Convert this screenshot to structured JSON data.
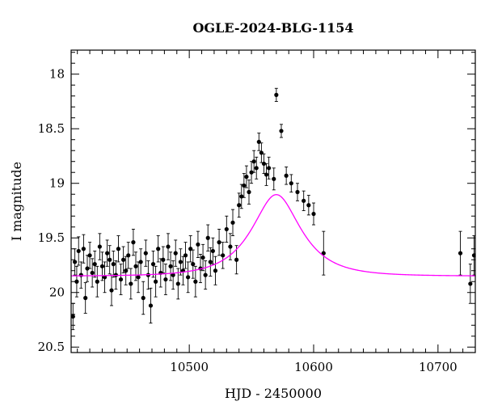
{
  "chart_data": {
    "type": "scatter",
    "title": "OGLE-2024-BLG-1154",
    "xlabel": "HJD - 2450000",
    "ylabel": "I magnitude",
    "xlim": [
      10405,
      10730
    ],
    "ylim": [
      20.55,
      17.78
    ],
    "y_inverted": true,
    "xticks": [
      10500,
      10600,
      10700
    ],
    "xtick_labels": [
      "10500",
      "10600",
      "10700"
    ],
    "yticks": [
      18,
      18.5,
      19,
      19.5,
      20,
      20.5
    ],
    "ytick_labels": [
      "18",
      "18.5",
      "19",
      "19.5",
      "20",
      "20.5"
    ],
    "grid": false,
    "legend": "none",
    "colors": {
      "points": "#000000",
      "model": "#ff00ff",
      "axes": "#000000"
    },
    "series": [
      {
        "kind": "photometry-with-errorbars",
        "points": [
          [
            10406.5,
            20.22,
            0.12
          ],
          [
            10408,
            19.72,
            0.12
          ],
          [
            10409.5,
            19.9,
            0.14
          ],
          [
            10411,
            19.62,
            0.13
          ],
          [
            10413,
            19.84,
            0.12
          ],
          [
            10415,
            19.6,
            0.13
          ],
          [
            10416.5,
            20.05,
            0.14
          ],
          [
            10418,
            19.78,
            0.12
          ],
          [
            10420,
            19.66,
            0.12
          ],
          [
            10422,
            19.82,
            0.13
          ],
          [
            10424,
            19.74,
            0.12
          ],
          [
            10426,
            19.9,
            0.14
          ],
          [
            10428,
            19.58,
            0.12
          ],
          [
            10430,
            19.76,
            0.13
          ],
          [
            10432,
            19.86,
            0.14
          ],
          [
            10434,
            19.64,
            0.12
          ],
          [
            10436,
            19.7,
            0.13
          ],
          [
            10437.5,
            19.98,
            0.14
          ],
          [
            10439,
            19.74,
            0.12
          ],
          [
            10441,
            19.84,
            0.13
          ],
          [
            10443,
            19.6,
            0.12
          ],
          [
            10445,
            19.88,
            0.14
          ],
          [
            10447,
            19.7,
            0.12
          ],
          [
            10449,
            19.8,
            0.13
          ],
          [
            10451,
            19.66,
            0.12
          ],
          [
            10453,
            19.92,
            0.14
          ],
          [
            10455,
            19.54,
            0.12
          ],
          [
            10457,
            19.76,
            0.13
          ],
          [
            10459,
            19.86,
            0.14
          ],
          [
            10461,
            19.72,
            0.12
          ],
          [
            10463,
            20.05,
            0.15
          ],
          [
            10465,
            19.64,
            0.12
          ],
          [
            10467,
            19.84,
            0.13
          ],
          [
            10469,
            20.12,
            0.16
          ],
          [
            10471,
            19.74,
            0.12
          ],
          [
            10473,
            19.9,
            0.14
          ],
          [
            10475,
            19.6,
            0.12
          ],
          [
            10477,
            19.82,
            0.13
          ],
          [
            10479,
            19.7,
            0.12
          ],
          [
            10481,
            19.88,
            0.14
          ],
          [
            10483,
            19.58,
            0.12
          ],
          [
            10485,
            19.76,
            0.13
          ],
          [
            10487,
            19.84,
            0.13
          ],
          [
            10489,
            19.64,
            0.12
          ],
          [
            10491,
            19.92,
            0.14
          ],
          [
            10493,
            19.72,
            0.12
          ],
          [
            10495,
            19.8,
            0.13
          ],
          [
            10497,
            19.66,
            0.12
          ],
          [
            10499,
            19.86,
            0.14
          ],
          [
            10501,
            19.6,
            0.12
          ],
          [
            10503,
            19.74,
            0.13
          ],
          [
            10505,
            19.9,
            0.14
          ],
          [
            10507,
            19.56,
            0.12
          ],
          [
            10509,
            19.78,
            0.13
          ],
          [
            10511,
            19.68,
            0.12
          ],
          [
            10513,
            19.84,
            0.13
          ],
          [
            10515,
            19.5,
            0.12
          ],
          [
            10517,
            19.72,
            0.13
          ],
          [
            10519,
            19.62,
            0.12
          ],
          [
            10521,
            19.8,
            0.13
          ],
          [
            10524,
            19.54,
            0.12
          ],
          [
            10527,
            19.66,
            0.12
          ],
          [
            10530,
            19.42,
            0.12
          ],
          [
            10533,
            19.58,
            0.12
          ],
          [
            10535,
            19.36,
            0.12
          ],
          [
            10538,
            19.7,
            0.13
          ],
          [
            10540,
            19.2,
            0.11
          ],
          [
            10542,
            19.12,
            0.11
          ],
          [
            10544,
            19.02,
            0.11
          ],
          [
            10546,
            18.94,
            0.1
          ],
          [
            10548,
            19.08,
            0.11
          ],
          [
            10550,
            18.9,
            0.1
          ],
          [
            10552,
            18.8,
            0.1
          ],
          [
            10554,
            18.86,
            0.1
          ],
          [
            10556,
            18.62,
            0.08
          ],
          [
            10558,
            18.72,
            0.09
          ],
          [
            10560,
            18.82,
            0.09
          ],
          [
            10562,
            18.92,
            0.1
          ],
          [
            10564,
            18.86,
            0.1
          ],
          [
            10570,
            18.19,
            0.06
          ],
          [
            10568,
            18.96,
            0.1
          ],
          [
            10574,
            18.52,
            0.06
          ],
          [
            10578,
            18.93,
            0.08
          ],
          [
            10582,
            19.0,
            0.08
          ],
          [
            10587,
            19.08,
            0.08
          ],
          [
            10592,
            19.16,
            0.09
          ],
          [
            10596,
            19.2,
            0.09
          ],
          [
            10600,
            19.28,
            0.1
          ],
          [
            10608,
            19.64,
            0.2
          ],
          [
            10718,
            19.64,
            0.2
          ],
          [
            10726,
            19.92,
            0.18
          ],
          [
            10729,
            19.66,
            0.18
          ]
        ]
      },
      {
        "kind": "model-curve",
        "t0": 10570,
        "u0": 0.56,
        "tE": 32,
        "I0": 19.85
      }
    ]
  }
}
